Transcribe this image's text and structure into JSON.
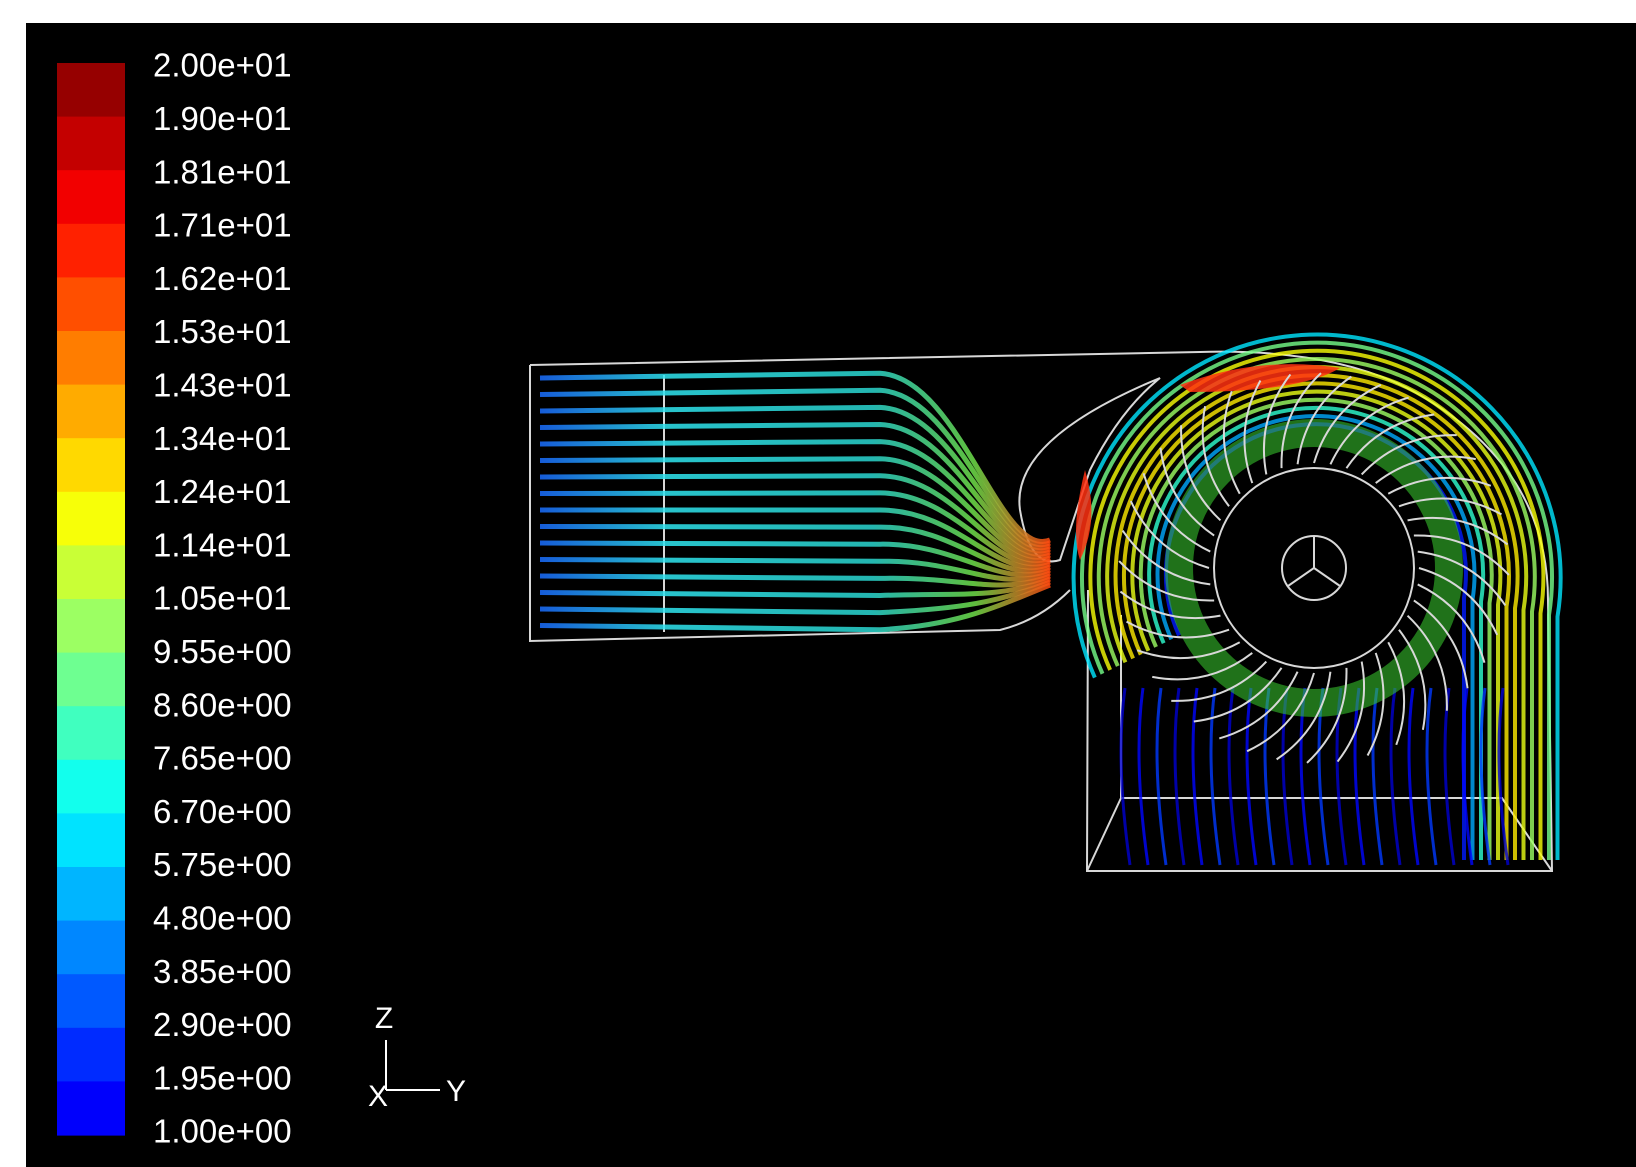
{
  "colorbar": {
    "labels": [
      "2.00e+01",
      "1.90e+01",
      "1.81e+01",
      "1.71e+01",
      "1.62e+01",
      "1.53e+01",
      "1.43e+01",
      "1.34e+01",
      "1.24e+01",
      "1.14e+01",
      "1.05e+01",
      "9.55e+00",
      "8.60e+00",
      "7.65e+00",
      "6.70e+00",
      "5.75e+00",
      "4.80e+00",
      "3.85e+00",
      "2.90e+00",
      "1.95e+00",
      "1.00e+00"
    ]
  },
  "axes_triad": {
    "z": "Z",
    "y": "Y",
    "x": "X"
  }
}
